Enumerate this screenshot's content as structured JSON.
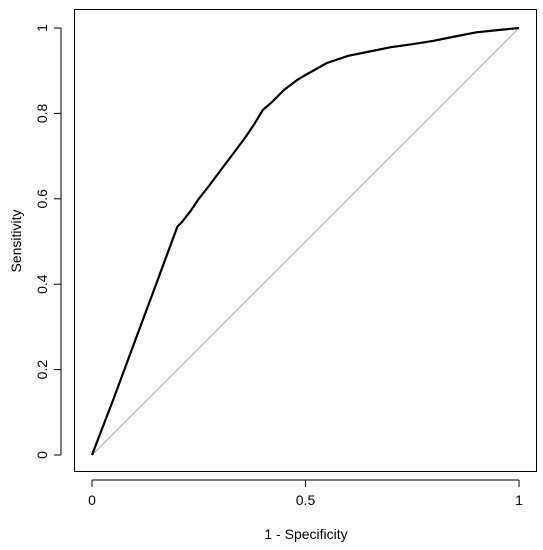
{
  "chart_data": {
    "type": "line",
    "title": "",
    "xlabel": "1 - Specificity",
    "ylabel": "Sensitivity",
    "xlim": [
      0,
      1
    ],
    "ylim": [
      0,
      1
    ],
    "grid": false,
    "x_ticks": [
      0,
      0.5,
      1
    ],
    "x_tick_labels": [
      "0",
      "0.5",
      "1"
    ],
    "y_ticks": [
      0,
      0.2,
      0.4,
      0.6,
      0.8,
      1
    ],
    "y_tick_labels": [
      "0",
      "0.2",
      "0.4",
      "0.6",
      "0.8",
      "1"
    ],
    "series": [
      {
        "color": "#000000",
        "x": [
          0,
          0.05,
          0.1,
          0.15,
          0.2,
          0.21,
          0.23,
          0.25,
          0.27,
          0.3,
          0.33,
          0.36,
          0.38,
          0.4,
          0.42,
          0.45,
          0.48,
          0.5,
          0.55,
          0.6,
          0.65,
          0.7,
          0.75,
          0.8,
          0.85,
          0.9,
          0.95,
          1
        ],
        "y": [
          0,
          0.13,
          0.265,
          0.4,
          0.535,
          0.545,
          0.57,
          0.6,
          0.625,
          0.665,
          0.705,
          0.745,
          0.775,
          0.808,
          0.825,
          0.855,
          0.878,
          0.89,
          0.918,
          0.935,
          0.945,
          0.955,
          0.962,
          0.97,
          0.98,
          0.99,
          0.995,
          1
        ]
      },
      {
        "color": "#aaaaaa",
        "x": [
          0,
          1
        ],
        "y": [
          0,
          1
        ]
      }
    ]
  }
}
